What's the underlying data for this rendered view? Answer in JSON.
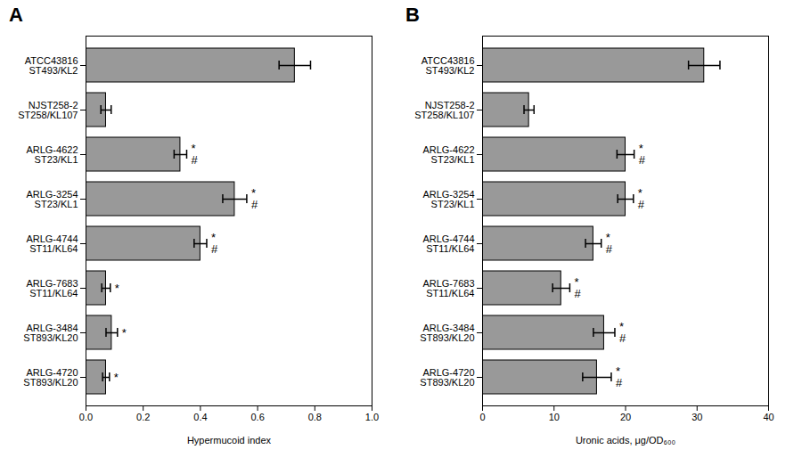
{
  "chart_data": [
    {
      "type": "bar",
      "orientation": "horizontal",
      "title": "A",
      "categories": [
        "ATCC43816\nST493/KL2",
        "NJST258-2\nST258/KL107",
        "ARLG-4622\nST23/KL1",
        "ARLG-3254\nST23/KL1",
        "ARLG-4744\nST11/KL64",
        "ARLG-7683\nST11/KL64",
        "ARLG-3484\nST893/KL20",
        "ARLG-4720\nST893/KL20"
      ],
      "values": [
        0.73,
        0.07,
        0.33,
        0.52,
        0.4,
        0.07,
        0.09,
        0.07
      ],
      "errors": [
        0.055,
        0.018,
        0.022,
        0.042,
        0.022,
        0.015,
        0.02,
        0.012
      ],
      "annotations": [
        null,
        null,
        "*#",
        "*#",
        "*#",
        "*",
        "*",
        "*"
      ],
      "xlabel": "Hypermucoid index",
      "xlim": [
        0,
        1.0
      ],
      "xticks": [
        {
          "value": 0,
          "label": "0.0"
        },
        0.2,
        0.4,
        0.6,
        0.8,
        {
          "value": 1.0,
          "label": "1.0"
        }
      ],
      "color": "#999999",
      "grid": false
    },
    {
      "type": "bar",
      "orientation": "horizontal",
      "title": "B",
      "categories": [
        "ATCC43816\nST493/KL2",
        "NJST258-2\nST258/KL107",
        "ARLG-4622\nST23/KL1",
        "ARLG-3254\nST23/KL1",
        "ARLG-4744\nST11/KL64",
        "ARLG-7683\nST11/KL64",
        "ARLG-3484\nST893/KL20",
        "ARLG-4720\nST893/KL20"
      ],
      "values": [
        31.0,
        6.5,
        20.0,
        20.0,
        15.5,
        11.0,
        17.0,
        16.0
      ],
      "errors": [
        2.2,
        0.7,
        1.2,
        1.1,
        1.1,
        1.2,
        1.5,
        2.0
      ],
      "annotations": [
        null,
        null,
        "*#",
        "*#",
        "*#",
        "*#",
        "*#",
        "*#"
      ],
      "xlabel": "Uronic acids, μg/OD₆₀₀",
      "xlim": [
        0,
        40
      ],
      "xticks": [
        0,
        10,
        20,
        30,
        40
      ],
      "color": "#999999",
      "grid": false
    }
  ]
}
